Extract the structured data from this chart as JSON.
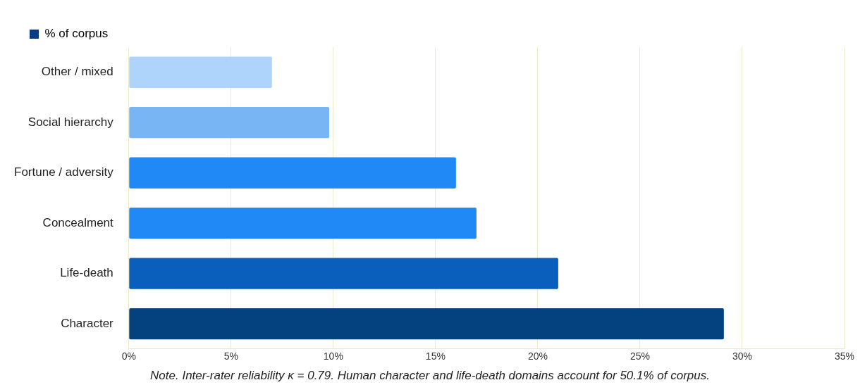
{
  "chart_data": {
    "type": "bar",
    "orientation": "horizontal",
    "categories": [
      "Other / mixed",
      "Social hierarchy",
      "Fortune / adversity",
      "Concealment",
      "Life-death",
      "Character"
    ],
    "series": [
      {
        "name": "% of corpus",
        "color": "#0a3a80",
        "values": [
          7,
          9.8,
          16,
          17,
          21,
          29.1
        ],
        "colors": [
          "#aed4fb",
          "#78b5f5",
          "#2189f5",
          "#2189f5",
          "#0a5fbd",
          "#04427f"
        ]
      }
    ],
    "xlim": [
      0,
      35
    ],
    "xticks": [
      {
        "value": 0,
        "label": "0%"
      },
      {
        "value": 5,
        "label": "5%"
      },
      {
        "value": 10,
        "label": "10%"
      },
      {
        "value": 15,
        "label": "15%"
      },
      {
        "value": 20,
        "label": "20%"
      },
      {
        "value": 25,
        "label": "25%"
      },
      {
        "value": 30,
        "label": "30%"
      },
      {
        "value": 35,
        "label": "35%"
      }
    ],
    "grid": "x",
    "legend": "top left",
    "annotations": [
      "Note. Inter-rater reliability κ = 0.79. Human character and life-death domains account for 50.1% of corpus."
    ]
  }
}
